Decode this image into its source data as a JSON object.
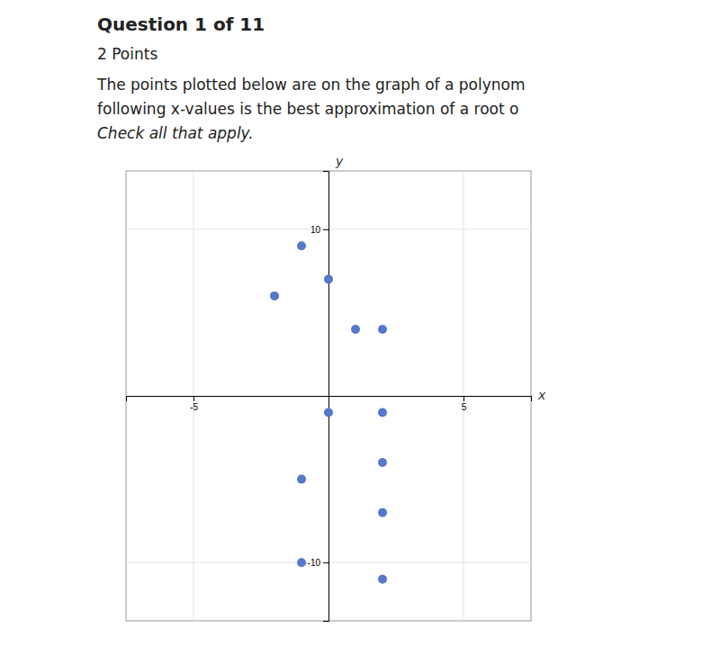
{
  "chart_data": {
    "type": "scatter",
    "title": "Question 1 of 11",
    "subtitle": "2 Points",
    "annotations": [
      "The points plotted below are on the graph of a polynom",
      "following x-values is the best approximation of a root o",
      "Check all that apply."
    ],
    "x_label": "x",
    "y_label": "y",
    "x": [
      -1,
      0,
      -2,
      1,
      2,
      0,
      2,
      -1,
      2,
      2,
      -1,
      2
    ],
    "values": [
      9,
      7,
      6,
      4,
      4,
      -1,
      -1,
      -5,
      -4,
      -7,
      -10,
      -11
    ],
    "color": "#5577CC",
    "xlim": [
      -7.5,
      7.5
    ],
    "ylim": [
      -13.5,
      13.5
    ],
    "xticks": [
      -5,
      5
    ],
    "yticks": [
      -10,
      10
    ],
    "grid": true
  }
}
